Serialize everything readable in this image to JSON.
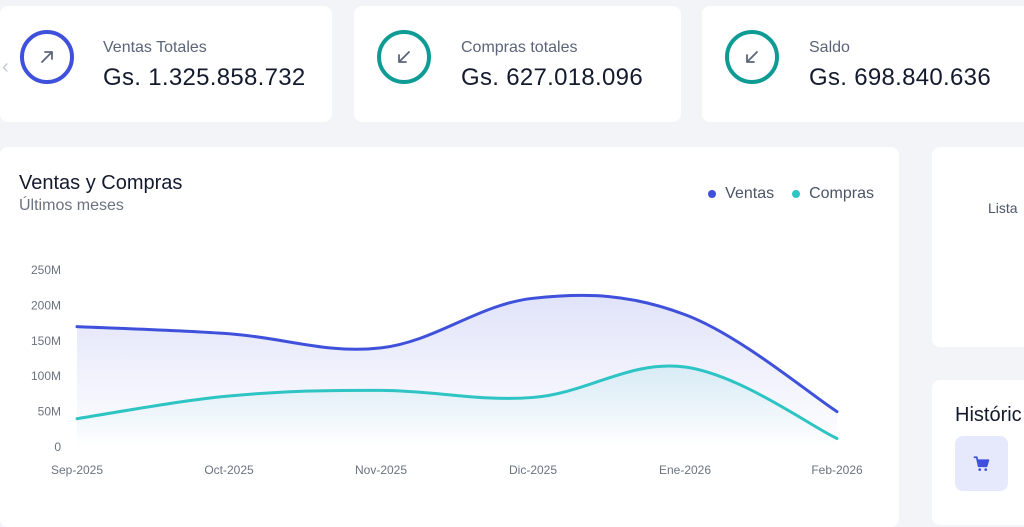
{
  "stats": [
    {
      "label": "Ventas Totales",
      "value": "Gs. 1.325.858.732",
      "color": "#3f51db",
      "direction": "up"
    },
    {
      "label": "Compras totales",
      "value": "Gs. 627.018.096",
      "color": "#0e9b94",
      "direction": "down"
    },
    {
      "label": "Saldo",
      "value": "Gs. 698.840.636",
      "color": "#0e9b94",
      "direction": "down"
    }
  ],
  "chart_card": {
    "title": "Ventas y Compras",
    "subtitle": "Últimos meses",
    "legend": [
      {
        "label": "Ventas",
        "color": "#3f51db"
      },
      {
        "label": "Compras",
        "color": "#2ec4c4"
      }
    ]
  },
  "chart_data": {
    "type": "area",
    "categories": [
      "Sep-2025",
      "Oct-2025",
      "Nov-2025",
      "Dic-2025",
      "Ene-2026",
      "Feb-2026"
    ],
    "series": [
      {
        "name": "Ventas",
        "values": [
          170,
          160,
          140,
          210,
          187,
          50
        ],
        "color": "#3f51db"
      },
      {
        "name": "Compras",
        "values": [
          40,
          72,
          80,
          70,
          113,
          12
        ],
        "color": "#2ec4c4"
      }
    ],
    "ylim": [
      0,
      250
    ],
    "yticks": [
      0,
      50,
      100,
      150,
      200,
      250
    ],
    "ytick_labels": [
      "0",
      "50M",
      "100M",
      "150M",
      "200M",
      "250M"
    ],
    "grid": false,
    "legend_position": "top-right"
  },
  "side_card": {
    "text": "Lista"
  },
  "history": {
    "title": "Históric",
    "icon": "cart-icon"
  }
}
